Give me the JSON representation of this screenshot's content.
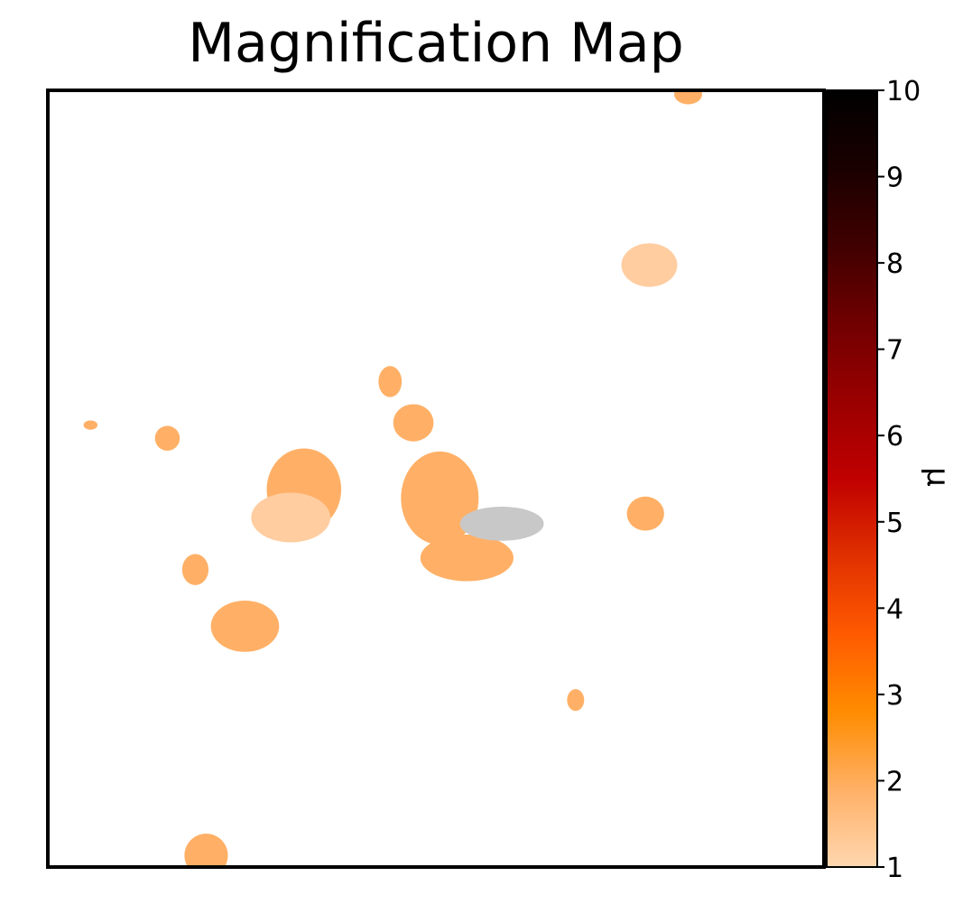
{
  "chart_data": {
    "type": "heatmap",
    "title": "Magnification Map",
    "colorbar": {
      "label": "μ",
      "range": [
        1,
        10
      ],
      "ticks": [
        "1",
        "2",
        "3",
        "4",
        "5",
        "6",
        "7",
        "8",
        "9",
        "10"
      ],
      "colormap": [
        "#ffd7b0",
        "#ffb066",
        "#ff8c00",
        "#ff5a00",
        "#e03000",
        "#c00000",
        "#9a0000",
        "#700000",
        "#400000",
        "#1a0000",
        "#000000"
      ]
    },
    "axes": {
      "xticks": false,
      "yticks": false
    },
    "extent": {
      "x": [
        0,
        100
      ],
      "y": [
        0,
        100
      ]
    },
    "regions": [
      {
        "name": "top-edge-blob",
        "cx": 82.5,
        "cy": 99.5,
        "rx": 1.8,
        "ry": 1.3,
        "mu": 1.8,
        "color": "#ffb066"
      },
      {
        "name": "upper-right-blob",
        "cx": 77.5,
        "cy": 77.5,
        "rx": 3.6,
        "ry": 2.8,
        "mu": 1.3,
        "color": "#ffcda0"
      },
      {
        "name": "center-small-1",
        "cx": 44.1,
        "cy": 62.5,
        "rx": 1.5,
        "ry": 2.0,
        "mu": 1.8,
        "color": "#ffb066"
      },
      {
        "name": "center-small-2",
        "cx": 47.1,
        "cy": 57.2,
        "rx": 2.6,
        "ry": 2.4,
        "mu": 1.8,
        "color": "#ffb066"
      },
      {
        "name": "left-dot",
        "cx": 5.5,
        "cy": 56.9,
        "rx": 0.9,
        "ry": 0.6,
        "mu": 1.8,
        "color": "#ffb066"
      },
      {
        "name": "left-small",
        "cx": 15.4,
        "cy": 55.2,
        "rx": 1.6,
        "ry": 1.6,
        "mu": 1.8,
        "color": "#ffb066"
      },
      {
        "name": "mid-left-blob",
        "cx": 33.0,
        "cy": 48.6,
        "rx": 4.8,
        "ry": 5.3,
        "mu": 1.8,
        "color": "#ffb066"
      },
      {
        "name": "mid-left-light",
        "cx": 31.3,
        "cy": 45.0,
        "rx": 5.1,
        "ry": 3.2,
        "mu": 1.3,
        "color": "#ffcda0"
      },
      {
        "name": "central-arm",
        "cx": 50.5,
        "cy": 47.5,
        "rx": 5.0,
        "ry": 6.0,
        "mu": 1.8,
        "color": "#ffb066"
      },
      {
        "name": "central-lower",
        "cx": 54.0,
        "cy": 39.8,
        "rx": 6.0,
        "ry": 3.0,
        "mu": 1.8,
        "color": "#ffb066"
      },
      {
        "name": "central-gray",
        "cx": 58.5,
        "cy": 44.2,
        "rx": 5.4,
        "ry": 2.2,
        "mu": null,
        "color": "#c8c8c8"
      },
      {
        "name": "right-blob",
        "cx": 77.0,
        "cy": 45.5,
        "rx": 2.4,
        "ry": 2.2,
        "mu": 1.8,
        "color": "#ffb066"
      },
      {
        "name": "lower-left-small",
        "cx": 19.0,
        "cy": 38.3,
        "rx": 1.7,
        "ry": 2.0,
        "mu": 1.8,
        "color": "#ffb066"
      },
      {
        "name": "lower-left-blob",
        "cx": 25.4,
        "cy": 31.0,
        "rx": 4.4,
        "ry": 3.3,
        "mu": 1.8,
        "color": "#ffb066"
      },
      {
        "name": "lower-small",
        "cx": 68.0,
        "cy": 21.5,
        "rx": 1.1,
        "ry": 1.4,
        "mu": 1.8,
        "color": "#ffb066"
      },
      {
        "name": "bottom-blob",
        "cx": 20.4,
        "cy": 1.5,
        "rx": 2.8,
        "ry": 2.8,
        "mu": 1.8,
        "color": "#ffb066"
      }
    ]
  }
}
